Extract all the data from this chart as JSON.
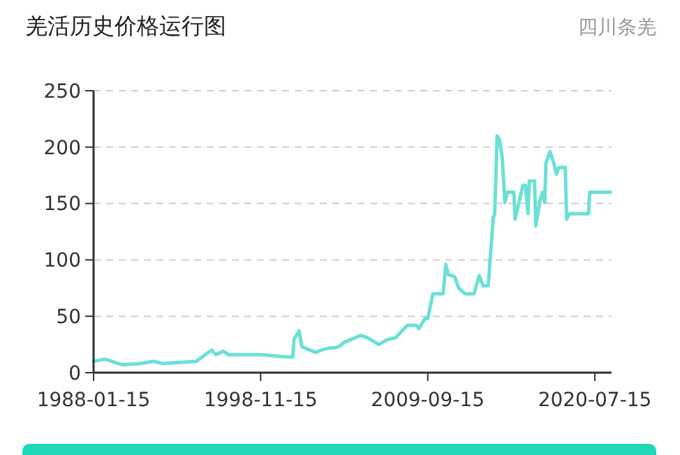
{
  "chart_data": {
    "type": "line",
    "title": "羌活历史价格运行图",
    "subtitle": "四川条羌",
    "x": [
      "1988-01-15",
      "1988-10-15",
      "1989-11-15",
      "1991-01-15",
      "1991-12-15",
      "1992-07-15",
      "1993-06-15",
      "1994-09-15",
      "1995-04-15",
      "1995-09-15",
      "1995-12-15",
      "1996-06-15",
      "1996-10-15",
      "1997-09-15",
      "1998-11-15",
      "2000-07-15",
      "2000-12-15",
      "2001-01-15",
      "2001-05-15",
      "2001-07-15",
      "2001-11-15",
      "2002-06-15",
      "2002-10-15",
      "2003-05-15",
      "2003-09-15",
      "2004-01-15",
      "2004-04-15",
      "2005-05-15",
      "2005-10-15",
      "2006-07-15",
      "2007-01-15",
      "2007-08-15",
      "2008-05-15",
      "2008-12-15",
      "2009-02-15",
      "2009-07-15",
      "2009-09-15",
      "2010-01-15",
      "2010-09-15",
      "2010-11-15",
      "2011-01-15",
      "2011-06-15",
      "2011-09-15",
      "2012-02-15",
      "2012-09-15",
      "2013-01-15",
      "2013-04-15",
      "2013-08-15",
      "2013-12-15",
      "2014-01-15",
      "2014-03-15",
      "2014-05-15",
      "2014-07-15",
      "2014-09-15",
      "2014-11-15",
      "2015-04-15",
      "2015-05-15",
      "2015-08-15",
      "2015-11-15",
      "2016-01-15",
      "2016-03-15",
      "2016-04-15",
      "2016-08-15",
      "2016-09-15",
      "2016-12-15",
      "2017-02-15",
      "2017-04-15",
      "2017-05-15",
      "2017-08-15",
      "2017-11-15",
      "2018-01-15",
      "2018-03-15",
      "2018-08-15",
      "2018-09-15",
      "2018-11-15",
      "2020-02-15",
      "2020-03-15",
      "2020-07-15",
      "2021-07-15"
    ],
    "series": [
      {
        "color": "#6ce0d6",
        "values": [
          10,
          12,
          7,
          8,
          10,
          8,
          9,
          10,
          16,
          20,
          16,
          19,
          16,
          16,
          16,
          14,
          14,
          30,
          37,
          23,
          21,
          18,
          20,
          22,
          22,
          24,
          27,
          33,
          31,
          25,
          29,
          31,
          42,
          42,
          39,
          48,
          48,
          70,
          70,
          96,
          87,
          85,
          75,
          70,
          70,
          86,
          77,
          77,
          138,
          140,
          210,
          206,
          190,
          151,
          160,
          160,
          136,
          151,
          166,
          166,
          141,
          170,
          170,
          130,
          151,
          160,
          151,
          186,
          196,
          186,
          176,
          182,
          182,
          136,
          141,
          141,
          160,
          160,
          160
        ]
      }
    ],
    "xlim": [
      "1988-01-15",
      "2021-08-15"
    ],
    "xticks": [
      "1988-01-15",
      "1998-11-15",
      "2009-09-15",
      "2020-07-15"
    ],
    "ylim": [
      0,
      250
    ],
    "yticks": [
      0,
      50,
      100,
      150,
      200,
      250
    ],
    "grid": "y",
    "line_style": "solid",
    "marker": "none"
  }
}
